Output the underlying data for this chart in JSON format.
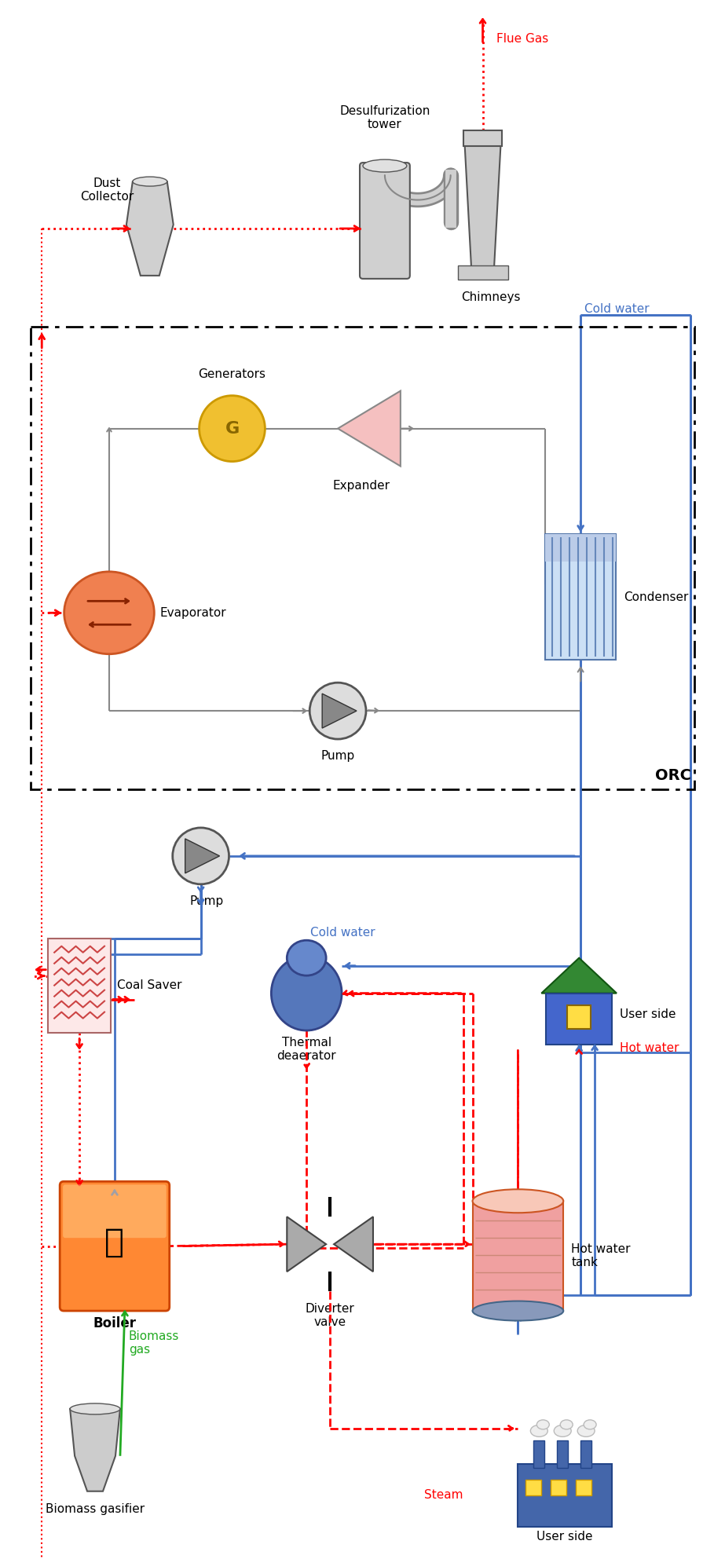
{
  "fig_width": 9.23,
  "fig_height": 19.85,
  "dpi": 100,
  "bg": "#ffffff",
  "RED": "#ff0000",
  "BLUE": "#4472c4",
  "GRAY": "#888888",
  "GREEN": "#22aa22",
  "BLACK": "#000000",
  "labels": {
    "flue_gas": "Flue Gas",
    "dust_collector": "Dust\nCollector",
    "desulf_tower": "Desulfurization\ntower",
    "chimneys": "Chimneys",
    "generators": "Generators",
    "expander": "Expander",
    "evaporator": "Evaporator",
    "condenser": "Condenser",
    "pump_orc": "Pump",
    "cold_water_top": "Cold water",
    "orc_label": "ORC",
    "pump2": "Pump",
    "cold_water_bot": "Cold water",
    "thermal_deaerator": "Thermal\ndeaerator",
    "coal_saver": "Coal Saver",
    "user_side_top": "User side",
    "hot_water": "Hot water",
    "hot_water_tank": "Hot water\ntank",
    "boiler": "Boiler",
    "diverter_valve": "Diverter\nvalve",
    "biomass_gasifier": "Biomass gasifier",
    "biomass_gas": "Biomass\ngas",
    "steam": "Steam",
    "user_side_bot": "User side"
  }
}
